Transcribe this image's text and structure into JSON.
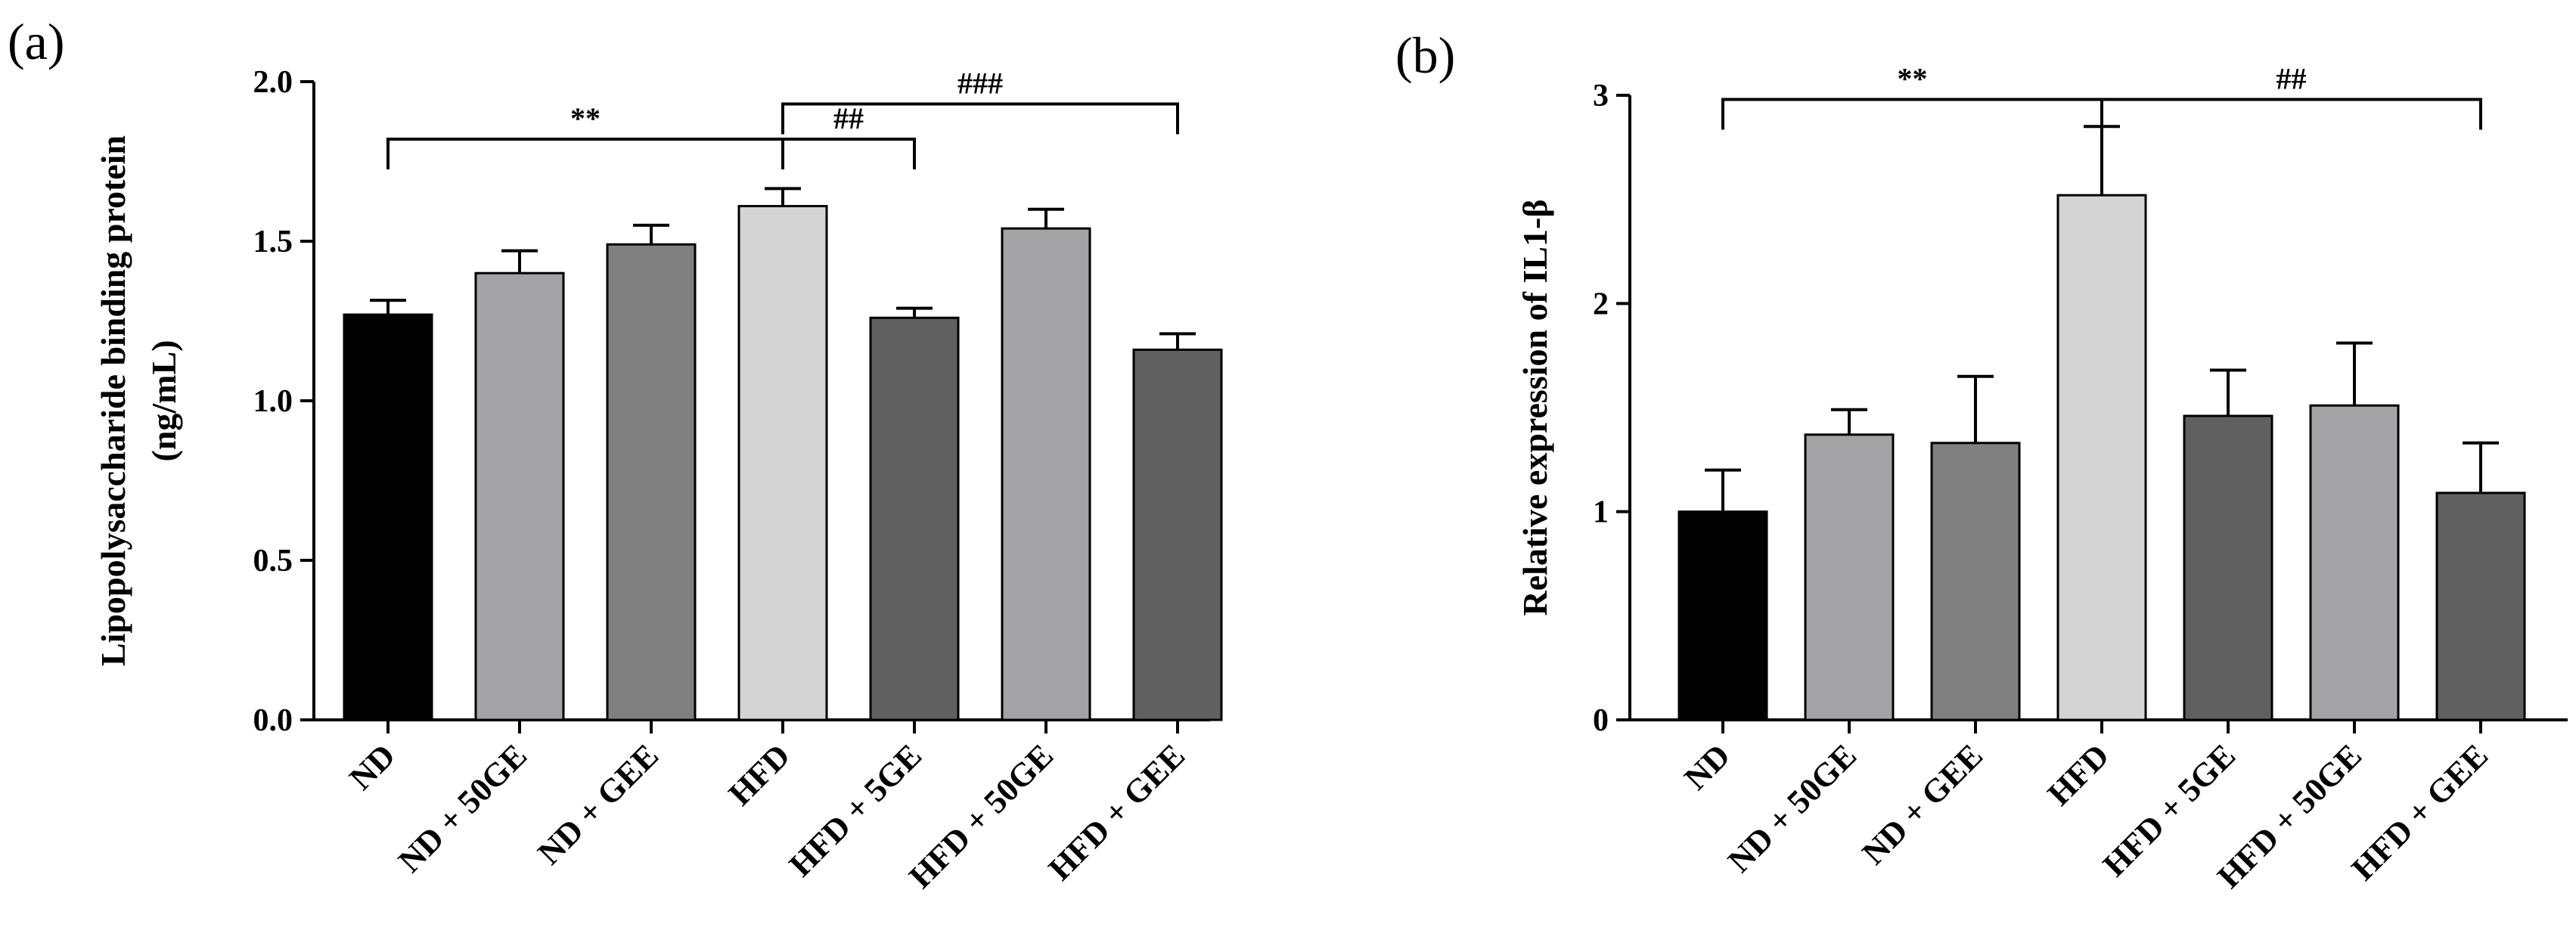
{
  "chart_data": [
    {
      "type": "bar",
      "panel_label": "(a)",
      "title": "",
      "xlabel": "",
      "ylabel_lines": [
        "Lipopolysaccharide binding protein",
        "(ng/mL)"
      ],
      "ylim": [
        0,
        2.0
      ],
      "yticks": [
        0.0,
        0.5,
        1.0,
        1.5,
        2.0
      ],
      "ytick_labels": [
        "0.0",
        "0.5",
        "1.0",
        "1.5",
        "2.0"
      ],
      "categories": [
        "ND",
        "ND + 50GE",
        "ND + GEE",
        "HFD",
        "HFD + 5GE",
        "HFD + 50GE",
        "HFD + GEE"
      ],
      "values": [
        1.27,
        1.4,
        1.49,
        1.61,
        1.26,
        1.54,
        1.16
      ],
      "errors": [
        0.045,
        0.07,
        0.06,
        0.055,
        0.03,
        0.06,
        0.05
      ],
      "bar_colors": [
        "#000000",
        "#a3a3a6",
        "#808080",
        "#d4d4d4",
        "#606060",
        "#a3a3a6",
        "#606060"
      ],
      "significance": [
        {
          "from": 0,
          "to": 3,
          "label": "**",
          "y": 1.82
        },
        {
          "from": 3,
          "to": 4,
          "label": "##",
          "y": 1.82
        },
        {
          "from": 3,
          "to": 6,
          "label": "###",
          "y": 1.93
        }
      ]
    },
    {
      "type": "bar",
      "panel_label": "(b)",
      "title": "",
      "xlabel": "",
      "ylabel_lines": [
        "Relative expression of IL1-β"
      ],
      "ylim": [
        0,
        3
      ],
      "yticks": [
        0,
        1,
        2,
        3
      ],
      "ytick_labels": [
        "0",
        "1",
        "2",
        "3"
      ],
      "categories": [
        "ND",
        "ND + 50GE",
        "ND + GEE",
        "HFD",
        "HFD + 5GE",
        "HFD + 50GE",
        "HFD + GEE"
      ],
      "values": [
        1.0,
        1.37,
        1.33,
        2.52,
        1.46,
        1.51,
        1.09
      ],
      "errors": [
        0.2,
        0.12,
        0.32,
        0.33,
        0.22,
        0.3,
        0.24
      ],
      "bar_colors": [
        "#000000",
        "#a3a3a6",
        "#808080",
        "#d4d4d4",
        "#606060",
        "#a3a3a6",
        "#606060"
      ],
      "significance": [
        {
          "from": 0,
          "to": 3,
          "label": "**",
          "y": 2.98
        },
        {
          "from": 3,
          "to": 6,
          "label": "##",
          "y": 2.98
        }
      ]
    }
  ]
}
